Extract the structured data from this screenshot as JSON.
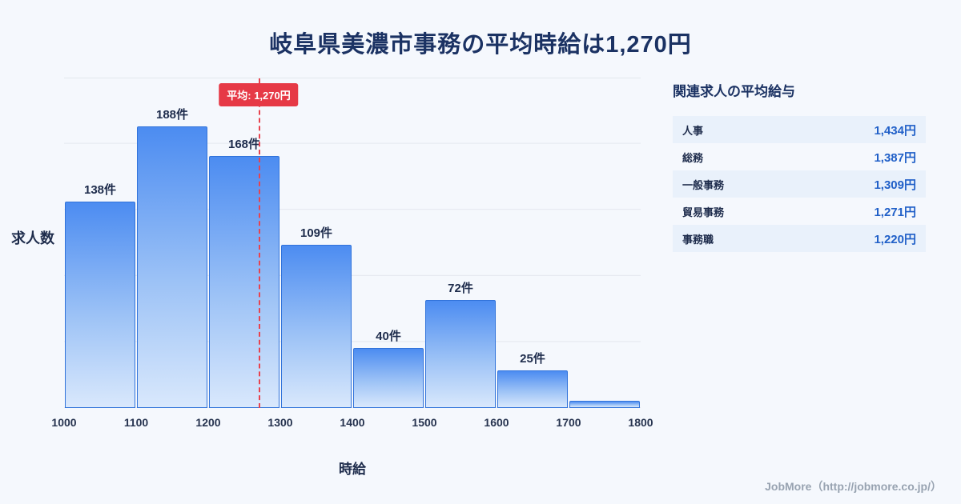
{
  "page": {
    "title": "岐阜県美濃市事務の平均時給は1,270円",
    "background": "#f5f8fd"
  },
  "chart_data": {
    "type": "bar",
    "title": "岐阜県美濃市事務の平均時給は1,270円",
    "xlabel": "時給",
    "ylabel": "求人数",
    "x_ticks": [
      1000,
      1100,
      1200,
      1300,
      1400,
      1500,
      1600,
      1700,
      1800
    ],
    "ylim": [
      0,
      220
    ],
    "grid": true,
    "bins": [
      {
        "range": [
          1000,
          1100
        ],
        "count": 138,
        "label": "138件"
      },
      {
        "range": [
          1100,
          1200
        ],
        "count": 188,
        "label": "188件"
      },
      {
        "range": [
          1200,
          1300
        ],
        "count": 168,
        "label": "168件"
      },
      {
        "range": [
          1300,
          1400
        ],
        "count": 109,
        "label": "109件"
      },
      {
        "range": [
          1400,
          1500
        ],
        "count": 40,
        "label": "40件"
      },
      {
        "range": [
          1500,
          1600
        ],
        "count": 72,
        "label": "72件"
      },
      {
        "range": [
          1600,
          1700
        ],
        "count": 25,
        "label": "25件"
      },
      {
        "range": [
          1700,
          1800
        ],
        "count": 5,
        "label": ""
      }
    ],
    "average": {
      "value": 1270,
      "label": "平均: 1,270円"
    },
    "legend_position": "none"
  },
  "side_panel": {
    "heading": "関連求人の平均給与",
    "rows": [
      {
        "label": "人事",
        "value": "1,434円"
      },
      {
        "label": "総務",
        "value": "1,387円"
      },
      {
        "label": "一般事務",
        "value": "1,309円"
      },
      {
        "label": "貿易事務",
        "value": "1,271円"
      },
      {
        "label": "事務職",
        "value": "1,220円"
      }
    ]
  },
  "footer": {
    "credit": "JobMore（http://jobmore.co.jp/）"
  },
  "colors": {
    "title_text": "#1b3263",
    "bar_fill_top": "#4c8cf1",
    "bar_fill_bottom": "#d9e8fc",
    "bar_border": "#3173da",
    "average_accent": "#e63946",
    "value_text": "#2160c8",
    "row_alt_background": "#e9f1fb",
    "gridline": "#e3e7ee",
    "footer_text": "#98a3b1"
  }
}
